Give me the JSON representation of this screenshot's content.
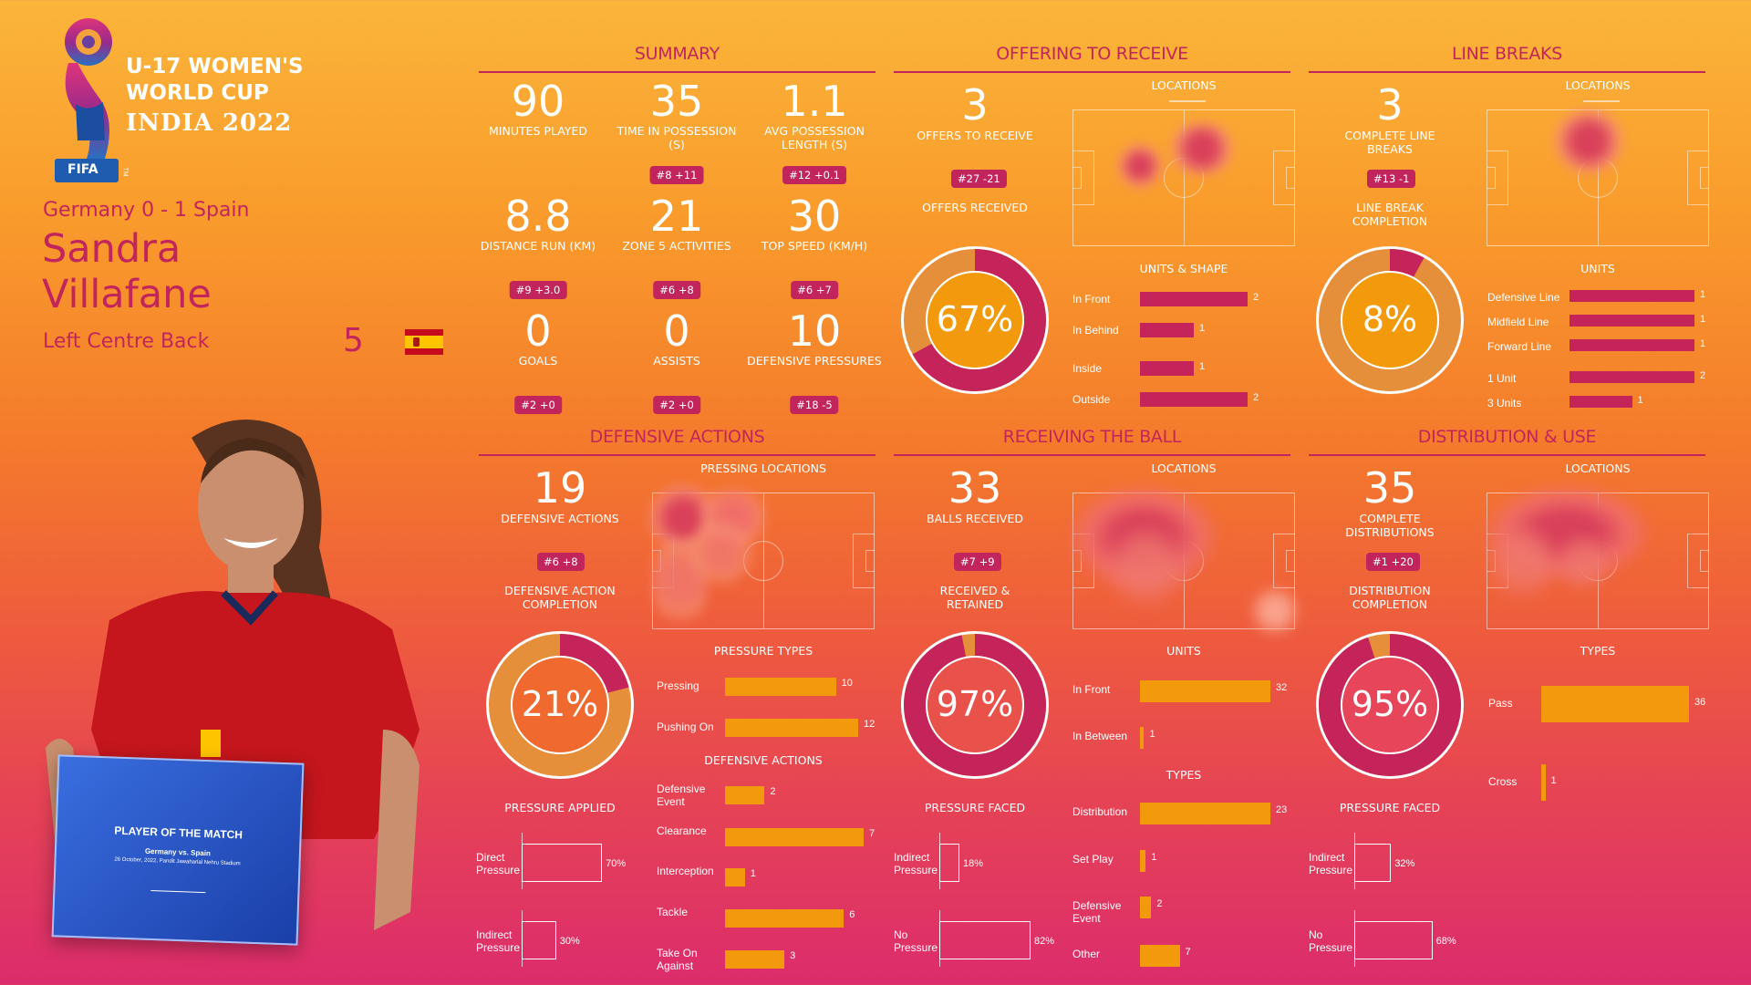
{
  "colors": {
    "accent": "#c2255c",
    "orange": "#f29a0c",
    "bar_pink": "#c4245a"
  },
  "logo": {
    "fifa": "FIFA",
    "tm": "TM",
    "line1": "U-17 WOMEN'S",
    "line2": "WORLD CUP",
    "line3": "INDIA 2022"
  },
  "player": {
    "match": "Germany 0 - 1 Spain",
    "first": "Sandra",
    "last": "Villafane",
    "position": "Left Centre Back",
    "number": "5",
    "flag": "spain-flag-icon"
  },
  "plaque": {
    "title": "PLAYER OF THE MATCH",
    "match": "Germany vs. Spain",
    "date": "26 October, 2022, Pandit Jawaharlal Nehru Stadium"
  },
  "summary": {
    "title": "SUMMARY",
    "stats": [
      {
        "value": "90",
        "label": "MINUTES PLAYED",
        "rank": ""
      },
      {
        "value": "35",
        "label": "TIME IN POSSESSION (s)",
        "rank": "#8 +11"
      },
      {
        "value": "1.1",
        "label": "AVG POSSESSION LENGTH (s)",
        "rank": "#12 +0.1"
      },
      {
        "value": "8.8",
        "label": "DISTANCE RUN (KM)",
        "rank": "#9 +3.0"
      },
      {
        "value": "21",
        "label": "ZONE 5 ACTIVITIES",
        "rank": "#6 +8"
      },
      {
        "value": "30",
        "label": "TOP SPEED (KM/H)",
        "rank": "#6 +7"
      },
      {
        "value": "0",
        "label": "GOALS",
        "rank": "#2 +0"
      },
      {
        "value": "0",
        "label": "ASSISTS",
        "rank": "#2 +0"
      },
      {
        "value": "10",
        "label": "DEFENSIVE PRESSURES",
        "rank": "#18 -5"
      }
    ]
  },
  "offering": {
    "title": "OFFERING TO RECEIVE",
    "value": "3",
    "label": "OFFERS TO RECEIVE",
    "rank": "#27 -21",
    "sub": "OFFERS RECEIVED",
    "pct": "67%",
    "pct_value": 67,
    "locations": "LOCATIONS",
    "units_title": "UNITS & SHAPE",
    "bars": [
      {
        "label": "In Front",
        "value": 2
      },
      {
        "label": "In Behind",
        "value": 1
      },
      {
        "label": "Inside",
        "value": 1
      },
      {
        "label": "Outside",
        "value": 2
      }
    ]
  },
  "linebreaks": {
    "title": "LINE BREAKS",
    "value": "3",
    "label": "COMPLETE LINE BREAKS",
    "rank": "#13 -1",
    "sub": "LINE BREAK COMPLETION",
    "pct": "8%",
    "pct_value": 8,
    "locations": "LOCATIONS",
    "units_title": "UNITS",
    "bars": [
      {
        "label": "Defensive Line",
        "value": 1
      },
      {
        "label": "Midfield Line",
        "value": 1
      },
      {
        "label": "Forward Line",
        "value": 1
      },
      {
        "label": "1 Unit",
        "value": 2
      },
      {
        "label": "3 Units",
        "value": 1
      }
    ]
  },
  "defensive": {
    "title": "DEFENSIVE ACTIONS",
    "value": "19",
    "label": "DEFENSIVE ACTIONS",
    "rank": "#6 +8",
    "sub": "DEFENSIVE ACTION COMPLETION",
    "pct": "21%",
    "pct_value": 21,
    "locations": "PRESSING LOCATIONS",
    "pressure_types_title": "PRESSURE TYPES",
    "pressure_types": [
      {
        "label": "Pressing",
        "value": 10
      },
      {
        "label": "Pushing On",
        "value": 12
      }
    ],
    "actions_title": "DEFENSIVE ACTIONS",
    "actions": [
      {
        "label": "Defensive Event",
        "value": 2
      },
      {
        "label": "Clearance",
        "value": 7
      },
      {
        "label": "Interception",
        "value": 1
      },
      {
        "label": "Tackle",
        "value": 6
      },
      {
        "label": "Take On Against",
        "value": 3
      }
    ],
    "pressure_title": "PRESSURE APPLIED",
    "pressure": [
      {
        "label": "Direct Pressure",
        "value": 70,
        "text": "70%"
      },
      {
        "label": "Indirect Pressure",
        "value": 30,
        "text": "30%"
      }
    ]
  },
  "receiving": {
    "title": "RECEIVING THE BALL",
    "value": "33",
    "label": "BALLS RECEIVED",
    "rank": "#7 +9",
    "sub": "RECEIVED & RETAINED",
    "pct": "97%",
    "pct_value": 97,
    "locations": "LOCATIONS",
    "units_title": "UNITS",
    "units": [
      {
        "label": "In Front",
        "value": 32
      },
      {
        "label": "In Between",
        "value": 1
      }
    ],
    "types_title": "TYPES",
    "types": [
      {
        "label": "Distribution",
        "value": 23
      },
      {
        "label": "Set Play",
        "value": 1
      },
      {
        "label": "Defensive Event",
        "value": 2
      },
      {
        "label": "Other",
        "value": 7
      }
    ],
    "pressure_title": "PRESSURE FACED",
    "pressure": [
      {
        "label": "Indirect Pressure",
        "value": 18,
        "text": "18%"
      },
      {
        "label": "No Pressure",
        "value": 82,
        "text": "82%"
      }
    ]
  },
  "distribution": {
    "title": "DISTRIBUTION & USE",
    "value": "35",
    "label": "COMPLETE DISTRIBUTIONS",
    "rank": "#1 +20",
    "sub": "DISTRIBUTION COMPLETION",
    "pct": "95%",
    "pct_value": 95,
    "locations": "LOCATIONS",
    "types_title": "TYPES",
    "types": [
      {
        "label": "Pass",
        "value": 36
      },
      {
        "label": "Cross",
        "value": 1
      }
    ],
    "pressure_title": "PRESSURE FACED",
    "pressure": [
      {
        "label": "Indirect Pressure",
        "value": 32,
        "text": "32%"
      },
      {
        "label": "No Pressure",
        "value": 68,
        "text": "68%"
      }
    ]
  }
}
